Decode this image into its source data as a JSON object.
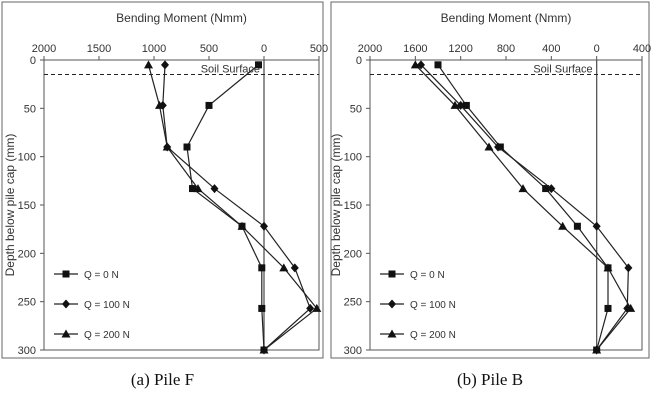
{
  "chart_data": [
    {
      "type": "line",
      "caption": "(a) Pile F",
      "title": "Bending Moment (Nmm)",
      "ylabel": "Depth below pile cap (mm)",
      "xlim": [
        2000,
        500
      ],
      "ylim": [
        0,
        300
      ],
      "x_ticks": [
        "2000",
        "1500",
        "1000",
        "500",
        "0",
        "500"
      ],
      "y_ticks": [
        "0",
        "50",
        "100",
        "150",
        "200",
        "250",
        "300"
      ],
      "annotation": "Soil Surface",
      "soil_surface_depth": 15,
      "legend_position": "bottom-left",
      "series": [
        {
          "name": "Q = 0 N",
          "marker": "square",
          "moment": [
            -50,
            -500,
            -700,
            -650,
            -200,
            -20,
            -20,
            0
          ],
          "depth": [
            5,
            47,
            90,
            133,
            172,
            215,
            257,
            300
          ]
        },
        {
          "name": "Q = 100 N",
          "marker": "diamond",
          "moment": [
            -900,
            -920,
            -880,
            -450,
            0,
            280,
            420,
            0
          ],
          "depth": [
            5,
            47,
            90,
            133,
            172,
            215,
            257,
            300
          ]
        },
        {
          "name": "Q = 200 N",
          "marker": "triangle",
          "moment": [
            -1050,
            -950,
            -880,
            -600,
            -200,
            180,
            480,
            0
          ],
          "depth": [
            5,
            47,
            90,
            133,
            172,
            215,
            257,
            300
          ]
        }
      ]
    },
    {
      "type": "line",
      "caption": "(b) Pile B",
      "title": "Bending Moment (Nmm)",
      "ylabel": "Depth below pile cap (mm)",
      "xlim": [
        2000,
        400
      ],
      "ylim": [
        0,
        300
      ],
      "x_ticks": [
        "2000",
        "1600",
        "1200",
        "800",
        "400",
        "0",
        "400"
      ],
      "y_ticks": [
        "0",
        "50",
        "100",
        "150",
        "200",
        "250",
        "300"
      ],
      "annotation": "Soil Surface",
      "soil_surface_depth": 15,
      "legend_position": "bottom-left",
      "series": [
        {
          "name": "Q = 0 N",
          "marker": "square",
          "moment": [
            -1400,
            -1150,
            -850,
            -450,
            -170,
            100,
            100,
            0
          ],
          "depth": [
            5,
            47,
            90,
            133,
            172,
            215,
            257,
            300
          ]
        },
        {
          "name": "Q = 100 N",
          "marker": "diamond",
          "moment": [
            -1550,
            -1200,
            -870,
            -400,
            0,
            280,
            270,
            0
          ],
          "depth": [
            5,
            47,
            90,
            133,
            172,
            215,
            257,
            300
          ]
        },
        {
          "name": "Q = 200 N",
          "marker": "triangle",
          "moment": [
            -1600,
            -1250,
            -950,
            -650,
            -300,
            100,
            300,
            0
          ],
          "depth": [
            5,
            47,
            90,
            133,
            172,
            215,
            257,
            300
          ]
        }
      ]
    }
  ]
}
